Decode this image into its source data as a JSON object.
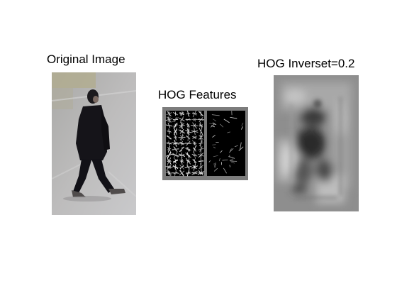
{
  "figure": {
    "panels": [
      {
        "title": "Original Image",
        "picture": "photo-of-pedestrian-walking"
      },
      {
        "title": "HOG Features",
        "picture": "hog-cell-glyph-grid-pair"
      },
      {
        "title": "HOG Inverset=0.2",
        "picture": "blurry-grayscale-hog-inversion"
      }
    ]
  }
}
